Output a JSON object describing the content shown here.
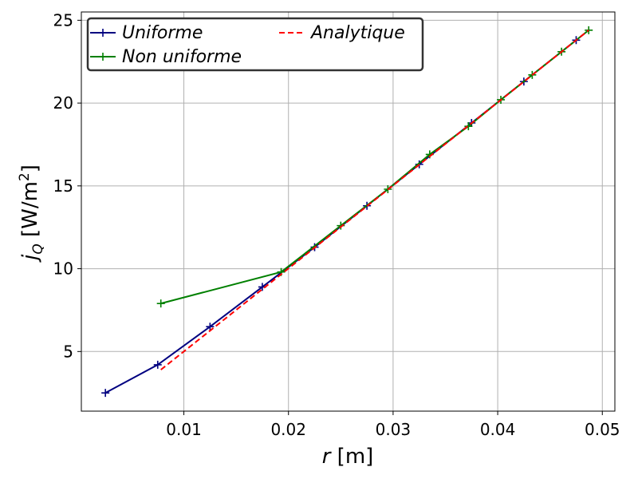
{
  "chart_data": {
    "type": "line",
    "xlabel_var": "r",
    "xlabel_unit": " [m]",
    "ylabel_var": "j",
    "ylabel_sub": "Q",
    "ylabel_unit_pre": " [W/m",
    "ylabel_unit_sup": "2",
    "ylabel_unit_post": "]",
    "xlim": [
      0.0002,
      0.0512
    ],
    "ylim": [
      1.4,
      25.5
    ],
    "xticks": [
      0.01,
      0.02,
      0.03,
      0.04,
      0.05
    ],
    "xtick_labels": [
      "0.01",
      "0.02",
      "0.03",
      "0.04",
      "0.05"
    ],
    "yticks": [
      5,
      10,
      15,
      20,
      25
    ],
    "ytick_labels": [
      "5",
      "10",
      "15",
      "20",
      "25"
    ],
    "grid": true,
    "legend_position": "top-left",
    "series": [
      {
        "name": "Uniforme",
        "color": "#000080",
        "style": "solid",
        "marker": "+",
        "x": [
          0.0025,
          0.0075,
          0.0125,
          0.0175,
          0.0225,
          0.0275,
          0.0325,
          0.0375,
          0.0425,
          0.0475
        ],
        "y": [
          2.5,
          4.2,
          6.5,
          8.9,
          11.3,
          13.8,
          16.3,
          18.8,
          21.3,
          23.8
        ]
      },
      {
        "name": "Non uniforme",
        "color": "#008000",
        "style": "solid",
        "marker": "+",
        "x": [
          0.0078,
          0.0193,
          0.025,
          0.0295,
          0.0335,
          0.0372,
          0.0403,
          0.0433,
          0.0461,
          0.0487
        ],
        "y": [
          7.9,
          9.8,
          12.6,
          14.8,
          16.9,
          18.6,
          20.2,
          21.7,
          23.1,
          24.4
        ]
      },
      {
        "name": "Analytique",
        "color": "#ff0000",
        "style": "dashed",
        "marker": "",
        "x": [
          0.0078,
          0.0487
        ],
        "y": [
          3.9,
          24.4
        ]
      }
    ]
  }
}
